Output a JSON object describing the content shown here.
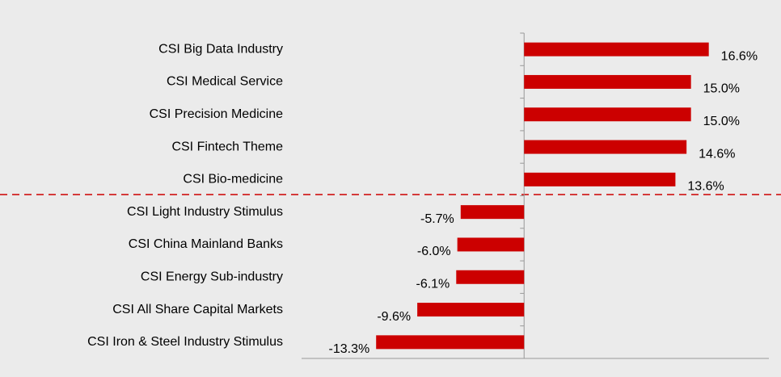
{
  "chart_data": {
    "type": "bar",
    "orientation": "horizontal",
    "categories": [
      "CSI Big Data Industry",
      "CSI Medical Service",
      "CSI Precision Medicine",
      "CSI Fintech Theme",
      "CSI Bio-medicine",
      "CSI Light Industry Stimulus",
      "CSI China Mainland Banks",
      "CSI Energy Sub-industry",
      "CSI All Share Capital Markets",
      "CSI Iron & Steel Industry Stimulus"
    ],
    "values": [
      16.6,
      15.0,
      15.0,
      14.6,
      13.6,
      -5.7,
      -6.0,
      -6.1,
      -9.6,
      -13.3
    ],
    "value_labels": [
      "16.6%",
      "15.0%",
      "15.0%",
      "14.6%",
      "13.6%",
      "-5.7%",
      "-6.0%",
      "-6.1%",
      "-9.6%",
      "-13.3%"
    ],
    "color": "#cc0000",
    "xlim": [
      -20,
      22
    ]
  }
}
